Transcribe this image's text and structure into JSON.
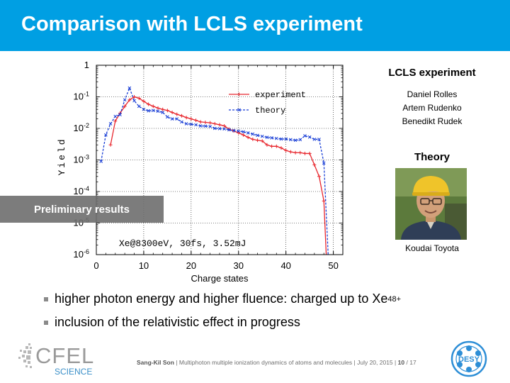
{
  "slide": {
    "title": "Comparison with LCLS experiment",
    "banner": "Preliminary results",
    "side": {
      "lcls_heading": "LCLS experiment",
      "lcls_names": [
        "Daniel Rolles",
        "Artem Rudenko",
        "Benedikt Rudek"
      ],
      "theory_heading": "Theory",
      "photo_caption": "Koudai Toyota"
    },
    "bullets": [
      {
        "text": "higher photon energy and higher fluence: charged up to Xe",
        "sup": "48+"
      },
      {
        "text": "inclusion of the relativistic effect in progress",
        "sup": ""
      }
    ],
    "footer": {
      "author": "Sang-Kil Son",
      "talk": "Multiphoton multiple ionization dynamics of atoms and molecules",
      "date": "July 20, 2015",
      "page": "10",
      "total": "17",
      "sep": "|",
      "slash": "/"
    },
    "logos": {
      "cfel_text": "CFEL",
      "cfel_sub": "SCIENCE",
      "desy_text": "DESY"
    }
  },
  "chart_data": {
    "type": "line",
    "xlabel": "Charge states",
    "ylabel": "Yield",
    "xlim": [
      0,
      52
    ],
    "ylim_log10": [
      -6,
      0
    ],
    "ylog": true,
    "x_ticks": [
      0,
      10,
      20,
      30,
      40,
      50
    ],
    "y_ticks": [
      {
        "value": 0,
        "label": "1",
        "exp": ""
      },
      {
        "value": -1,
        "label": "10",
        "exp": "-1"
      },
      {
        "value": -2,
        "label": "10",
        "exp": "-2"
      },
      {
        "value": -3,
        "label": "10",
        "exp": "-3"
      },
      {
        "value": -4,
        "label": "10",
        "exp": "-4"
      },
      {
        "value": -5,
        "label": "10",
        "exp": "-5"
      },
      {
        "value": -6,
        "label": "10",
        "exp": "-6"
      }
    ],
    "annotation": "Xe@8300eV, 30fs, 3.52mJ",
    "legend_position": "top-right",
    "series": [
      {
        "name": "experiment",
        "color": "#e8262d",
        "style": "solid",
        "marker": "plus",
        "points": [
          [
            3,
            0.003
          ],
          [
            4,
            0.017
          ],
          [
            5,
            0.03
          ],
          [
            6,
            0.05
          ],
          [
            7,
            0.08
          ],
          [
            8,
            0.1
          ],
          [
            9,
            0.09
          ],
          [
            10,
            0.072
          ],
          [
            11,
            0.058
          ],
          [
            12,
            0.05
          ],
          [
            13,
            0.044
          ],
          [
            14,
            0.04
          ],
          [
            15,
            0.037
          ],
          [
            16,
            0.032
          ],
          [
            17,
            0.028
          ],
          [
            18,
            0.025
          ],
          [
            19,
            0.022
          ],
          [
            20,
            0.02
          ],
          [
            21,
            0.018
          ],
          [
            22,
            0.016
          ],
          [
            23,
            0.0155
          ],
          [
            24,
            0.015
          ],
          [
            25,
            0.014
          ],
          [
            26,
            0.013
          ],
          [
            27,
            0.012
          ],
          [
            28,
            0.0095
          ],
          [
            29,
            0.0083
          ],
          [
            30,
            0.0072
          ],
          [
            31,
            0.0062
          ],
          [
            32,
            0.0052
          ],
          [
            33,
            0.0045
          ],
          [
            34,
            0.0042
          ],
          [
            35,
            0.004
          ],
          [
            36,
            0.003
          ],
          [
            37,
            0.0027
          ],
          [
            38,
            0.0027
          ],
          [
            39,
            0.0024
          ],
          [
            40,
            0.002
          ],
          [
            41,
            0.0018
          ],
          [
            42,
            0.0017
          ],
          [
            43,
            0.0017
          ],
          [
            44,
            0.0016
          ],
          [
            45,
            0.0016
          ],
          [
            46,
            0.0007
          ],
          [
            47,
            0.0003
          ],
          [
            48,
            5e-05
          ],
          [
            48.5,
            1e-06
          ]
        ]
      },
      {
        "name": "theory",
        "color": "#1a3fd6",
        "style": "dashed",
        "marker": "x",
        "points": [
          [
            1,
            0.0009
          ],
          [
            2,
            0.0062
          ],
          [
            3,
            0.014
          ],
          [
            4,
            0.024
          ],
          [
            5,
            0.027
          ],
          [
            6,
            0.08
          ],
          [
            7,
            0.19
          ],
          [
            8,
            0.075
          ],
          [
            9,
            0.05
          ],
          [
            10,
            0.04
          ],
          [
            11,
            0.036
          ],
          [
            12,
            0.037
          ],
          [
            13,
            0.035
          ],
          [
            14,
            0.032
          ],
          [
            15,
            0.023
          ],
          [
            16,
            0.02
          ],
          [
            17,
            0.02
          ],
          [
            18,
            0.016
          ],
          [
            19,
            0.014
          ],
          [
            20,
            0.0135
          ],
          [
            21,
            0.013
          ],
          [
            22,
            0.012
          ],
          [
            23,
            0.0118
          ],
          [
            24,
            0.0115
          ],
          [
            25,
            0.01
          ],
          [
            26,
            0.0098
          ],
          [
            27,
            0.0096
          ],
          [
            28,
            0.009
          ],
          [
            29,
            0.0085
          ],
          [
            30,
            0.0082
          ],
          [
            31,
            0.0078
          ],
          [
            32,
            0.0072
          ],
          [
            33,
            0.0066
          ],
          [
            34,
            0.006
          ],
          [
            35,
            0.0056
          ],
          [
            36,
            0.0052
          ],
          [
            37,
            0.005
          ],
          [
            38,
            0.0048
          ],
          [
            39,
            0.0046
          ],
          [
            40,
            0.0046
          ],
          [
            41,
            0.0044
          ],
          [
            42,
            0.0042
          ],
          [
            43,
            0.0044
          ],
          [
            44,
            0.0058
          ],
          [
            45,
            0.0053
          ],
          [
            46,
            0.0045
          ],
          [
            47,
            0.0045
          ],
          [
            48,
            0.0008
          ],
          [
            49,
            5e-07
          ]
        ]
      }
    ]
  }
}
